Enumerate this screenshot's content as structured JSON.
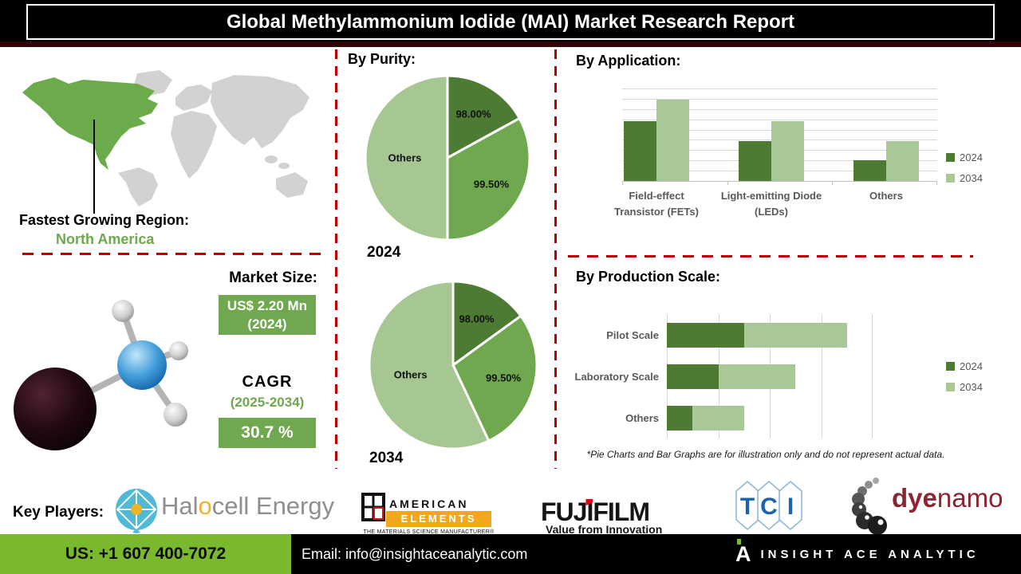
{
  "title": "Global Methylammonium Iodide (MAI) Market Research Report",
  "region": {
    "label": "Fastest Growing Region:",
    "value": "North America"
  },
  "market": {
    "label": "Market Size:",
    "size_value": "US$ 2.20 Mn",
    "size_year": "(2024)",
    "cagr_label": "CAGR",
    "cagr_period": "(2025-2034)",
    "cagr_value": "30.7 %"
  },
  "chart_data": [
    {
      "type": "pie",
      "title": "By Purity:",
      "year": "2024",
      "labels": [
        "98.00%",
        "99.50%",
        "Others"
      ],
      "values": [
        17,
        33,
        50
      ],
      "colors": [
        "#4e7b34",
        "#6fa84e",
        "#a6c791"
      ]
    },
    {
      "type": "pie",
      "year": "2034",
      "labels": [
        "98.00%",
        "99.50%",
        "Others"
      ],
      "values": [
        15,
        28,
        57
      ],
      "colors": [
        "#4e7b34",
        "#6fa84e",
        "#a6c791"
      ]
    },
    {
      "type": "bar",
      "title": "By Application:",
      "categories": [
        "Field-effect Transistor (FETs)",
        "Light-emitting Diode (LEDs)",
        "Others"
      ],
      "category_lines": [
        [
          "Field-effect",
          "Transistor (FETs)"
        ],
        [
          "Light-emitting Diode",
          "(LEDs)"
        ],
        [
          "Others"
        ]
      ],
      "series": [
        {
          "name": "2024",
          "color": "#4e7b34",
          "values": [
            65,
            43,
            22
          ]
        },
        {
          "name": "2034",
          "color": "#a9c797",
          "values": [
            88,
            65,
            43
          ]
        }
      ],
      "ylim": [
        0,
        100
      ],
      "grid": true,
      "legend_position": "right"
    },
    {
      "type": "bar",
      "orientation": "horizontal",
      "stacked": true,
      "title": "By Production Scale:",
      "categories": [
        "Pilot Scale",
        "Laboratory Scale",
        "Others"
      ],
      "series": [
        {
          "name": "2024",
          "color": "#4e7b34",
          "values": [
            1.5,
            1.0,
            0.5
          ]
        },
        {
          "name": "2034",
          "color": "#a9c797",
          "values": [
            2.0,
            1.5,
            1.0
          ]
        }
      ],
      "xlim": [
        0,
        4
      ],
      "grid": true,
      "legend_position": "right"
    }
  ],
  "footnote": "*Pie Charts and Bar Graphs are for illustration only and do not represent actual data.",
  "key_players": {
    "label": "Key Players:",
    "players": [
      "Halocell Energy",
      "American Elements",
      "FUJIFILM",
      "TCI",
      "Dyenamo"
    ]
  },
  "logos": {
    "halocell": {
      "pre": "Hal",
      "accent": "o",
      "post": "cell Energy"
    },
    "american_elements": {
      "line1": "AMERICAN",
      "line2": "ELEMENTS",
      "line3": "THE MATERIALS SCIENCE MANUFACTURER®"
    },
    "fujifilm": {
      "pre": "FUJ",
      "accent": "I",
      "post": "FILM",
      "tagline": "Value from Innovation"
    },
    "tci": {
      "letters": [
        "T",
        "C",
        "I"
      ]
    },
    "dyenamo": {
      "part1": "dye",
      "part2": "namo"
    }
  },
  "footer": {
    "phone": "US: +1 607 400-7072",
    "email": "Email: info@insightaceanalytic.com",
    "brand": "INSIGHT ACE ANALYTIC"
  },
  "colors": {
    "dark_green": "#4e7b34",
    "mid_green": "#6fa84e",
    "light_green": "#a6c791",
    "bar_light_green": "#a9c797",
    "map_green": "#6cab4c",
    "footer_green": "#7ab82e",
    "red_dash": "#c00000",
    "label_gray": "#595959"
  }
}
